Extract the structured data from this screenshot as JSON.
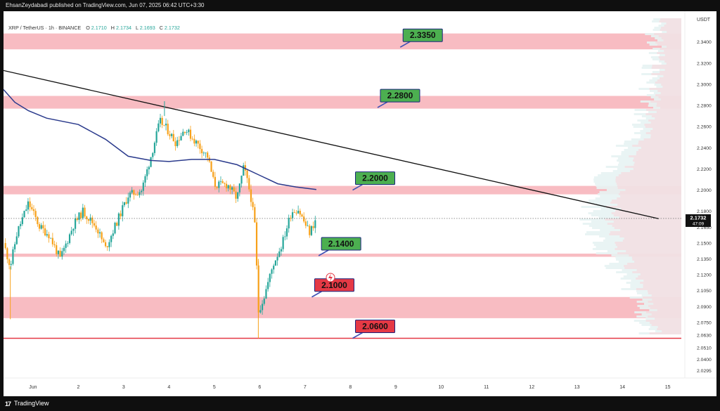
{
  "header": {
    "publish_line": "EhsanZeydabadi published on TradingView.com, Jun 07, 2025 06:42 UTC+3:30"
  },
  "legend": {
    "symbol": "XRP / TetherUS · 1h · BINANCE",
    "o_label": "O",
    "o_value": "2.1710",
    "h_label": "H",
    "h_value": "2.1734",
    "l_label": "L",
    "l_value": "2.1693",
    "c_label": "C",
    "c_value": "2.1732"
  },
  "footer": {
    "brand": "TradingView",
    "logo_text": "17"
  },
  "colors": {
    "bull": "#26a69a",
    "bear": "#f7a11a",
    "ma": "#2a3a8c",
    "zone": "#f6a5ad",
    "support_line": "#e53945",
    "label_green": "#4caf50",
    "label_red": "#e53945"
  },
  "chart_data": {
    "type": "candlestick",
    "currency": "USDT",
    "ylim": [
      2.0225,
      2.369
    ],
    "y_ticks": [
      "2.3400",
      "2.3200",
      "2.3000",
      "2.2800",
      "2.2600",
      "2.2400",
      "2.2200",
      "2.2000",
      "2.1800",
      "2.1650",
      "2.1500",
      "2.1350",
      "2.1200",
      "2.1050",
      "2.0900",
      "2.0750",
      "2.0630",
      "2.0510",
      "2.0400",
      "2.0295"
    ],
    "x_ticks": [
      {
        "label": "Jun",
        "day": 1
      },
      {
        "label": "2",
        "day": 2
      },
      {
        "label": "3",
        "day": 3
      },
      {
        "label": "4",
        "day": 4
      },
      {
        "label": "5",
        "day": 5
      },
      {
        "label": "6",
        "day": 6
      },
      {
        "label": "7",
        "day": 7
      },
      {
        "label": "8",
        "day": 8
      },
      {
        "label": "9",
        "day": 9
      },
      {
        "label": "10",
        "day": 10
      },
      {
        "label": "11",
        "day": 11
      },
      {
        "label": "12",
        "day": 12
      },
      {
        "label": "13",
        "day": 13
      },
      {
        "label": "14",
        "day": 14
      },
      {
        "label": "15",
        "day": 15
      }
    ],
    "xlim": [
      0.35,
      15.3
    ],
    "current_price": "2.1732",
    "countdown": "47:09",
    "zones": [
      {
        "low": 2.333,
        "high": 2.348
      },
      {
        "low": 2.277,
        "high": 2.289
      },
      {
        "low": 2.196,
        "high": 2.204
      },
      {
        "low": 2.137,
        "high": 2.14
      },
      {
        "low": 2.079,
        "high": 2.099
      }
    ],
    "support_line": 2.06,
    "levels": [
      {
        "text": "2.3350",
        "color": "green",
        "anchor_day": 9.1,
        "anchor_price": 2.335
      },
      {
        "text": "2.2800",
        "color": "green",
        "anchor_day": 8.6,
        "anchor_price": 2.278
      },
      {
        "text": "2.2000",
        "color": "green",
        "anchor_day": 8.05,
        "anchor_price": 2.2
      },
      {
        "text": "2.1400",
        "color": "green",
        "anchor_day": 7.3,
        "anchor_price": 2.138
      },
      {
        "text": "2.1000",
        "color": "red",
        "anchor_day": 7.15,
        "anchor_price": 2.099
      },
      {
        "text": "2.0600",
        "color": "red",
        "anchor_day": 8.05,
        "anchor_price": 2.06
      }
    ],
    "trendline": {
      "start": {
        "day": 0.35,
        "price": 2.313
      },
      "end": {
        "day": 14.8,
        "price": 2.173
      }
    },
    "moving_average": [
      {
        "day": 0.35,
        "price": 2.295
      },
      {
        "day": 0.6,
        "price": 2.283
      },
      {
        "day": 0.9,
        "price": 2.275
      },
      {
        "day": 1.3,
        "price": 2.268
      },
      {
        "day": 2.0,
        "price": 2.262
      },
      {
        "day": 2.6,
        "price": 2.248
      },
      {
        "day": 3.1,
        "price": 2.232
      },
      {
        "day": 3.6,
        "price": 2.228
      },
      {
        "day": 4.0,
        "price": 2.227
      },
      {
        "day": 4.5,
        "price": 2.229
      },
      {
        "day": 5.0,
        "price": 2.229
      },
      {
        "day": 5.5,
        "price": 2.224
      },
      {
        "day": 6.0,
        "price": 2.214
      },
      {
        "day": 6.4,
        "price": 2.206
      },
      {
        "day": 6.8,
        "price": 2.203
      },
      {
        "day": 7.25,
        "price": 2.2005
      }
    ],
    "price_path": [
      {
        "day": 0.35,
        "price": 2.15
      },
      {
        "day": 0.5,
        "price": 2.128
      },
      {
        "day": 0.65,
        "price": 2.16
      },
      {
        "day": 0.9,
        "price": 2.188
      },
      {
        "day": 1.15,
        "price": 2.165
      },
      {
        "day": 1.35,
        "price": 2.158
      },
      {
        "day": 1.6,
        "price": 2.135
      },
      {
        "day": 1.9,
        "price": 2.168
      },
      {
        "day": 2.1,
        "price": 2.18
      },
      {
        "day": 2.4,
        "price": 2.165
      },
      {
        "day": 2.6,
        "price": 2.145
      },
      {
        "day": 2.85,
        "price": 2.17
      },
      {
        "day": 3.1,
        "price": 2.195
      },
      {
        "day": 3.4,
        "price": 2.2
      },
      {
        "day": 3.65,
        "price": 2.24
      },
      {
        "day": 3.8,
        "price": 2.265
      },
      {
        "day": 3.95,
        "price": 2.258
      },
      {
        "day": 4.15,
        "price": 2.245
      },
      {
        "day": 4.35,
        "price": 2.258
      },
      {
        "day": 4.6,
        "price": 2.245
      },
      {
        "day": 4.85,
        "price": 2.232
      },
      {
        "day": 5.0,
        "price": 2.205
      },
      {
        "day": 5.3,
        "price": 2.205
      },
      {
        "day": 5.5,
        "price": 2.192
      },
      {
        "day": 5.65,
        "price": 2.222
      },
      {
        "day": 5.8,
        "price": 2.195
      },
      {
        "day": 5.9,
        "price": 2.165
      },
      {
        "day": 5.97,
        "price": 2.085
      },
      {
        "day": 6.1,
        "price": 2.1
      },
      {
        "day": 6.3,
        "price": 2.13
      },
      {
        "day": 6.5,
        "price": 2.15
      },
      {
        "day": 6.7,
        "price": 2.18
      },
      {
        "day": 6.85,
        "price": 2.182
      },
      {
        "day": 7.0,
        "price": 2.168
      },
      {
        "day": 7.1,
        "price": 2.16
      },
      {
        "day": 7.25,
        "price": 2.173
      }
    ]
  }
}
